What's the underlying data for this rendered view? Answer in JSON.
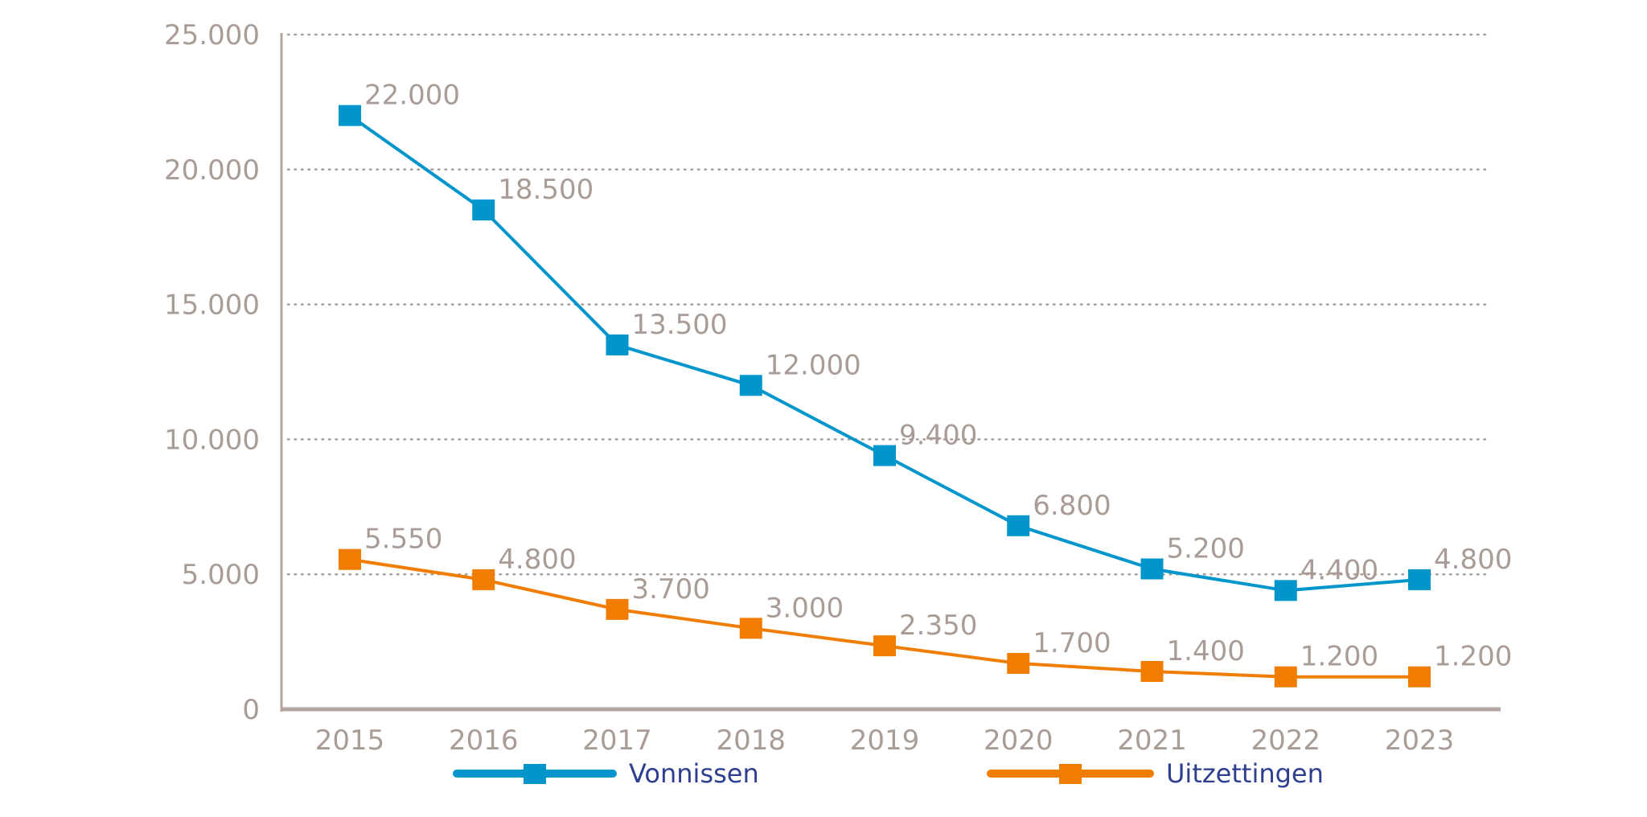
{
  "chart_data": {
    "type": "line",
    "title": "",
    "xlabel": "",
    "ylabel": "",
    "categories": [
      "2015",
      "2016",
      "2017",
      "2018",
      "2019",
      "2020",
      "2021",
      "2022",
      "2023"
    ],
    "ylim": [
      0,
      25000
    ],
    "yticks": [
      0,
      5000,
      10000,
      15000,
      20000,
      25000
    ],
    "ytick_labels": [
      "0",
      "5.000",
      "10.000",
      "15.000",
      "20.000",
      "25.000"
    ],
    "grid": "horizontal-dotted",
    "legend_position": "bottom",
    "series": [
      {
        "name": "Vonnissen",
        "color": "#0096cc",
        "values": [
          22000,
          18500,
          13500,
          12000,
          9400,
          6800,
          5200,
          4400,
          4800
        ],
        "labels": [
          "22.000",
          "18.500",
          "13.500",
          "12.000",
          "9.400",
          "6.800",
          "5.200",
          "4.400",
          "4.800"
        ]
      },
      {
        "name": "Uitzettingen",
        "color": "#f07d00",
        "values": [
          5550,
          4800,
          3700,
          3000,
          2350,
          1700,
          1400,
          1200,
          1200
        ],
        "labels": [
          "5.550",
          "4.800",
          "3.700",
          "3.000",
          "2.350",
          "1.700",
          "1.400",
          "1.200",
          "1.200"
        ]
      }
    ]
  },
  "colors": {
    "axis": "#b3a49d",
    "grid": "#a99b95",
    "text": "#a99b95",
    "legend_text": "#2e3f8f"
  }
}
